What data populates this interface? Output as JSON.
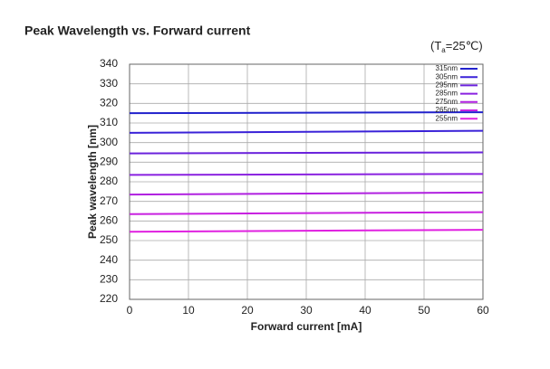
{
  "chart_data": {
    "type": "line",
    "title": "Peak Wavelength vs. Forward current",
    "annotation": {
      "prefix": "(T",
      "sub": "a",
      "suffix": "=25℃)"
    },
    "x_label": "Forward current [mA]",
    "y_label": "Peak wavelength [nm]",
    "x": [
      0,
      60
    ],
    "series": [
      {
        "name": "315nm",
        "color": "#2222cc",
        "values": [
          315,
          315.5
        ]
      },
      {
        "name": "305nm",
        "color": "#3a22d8",
        "values": [
          305,
          306
        ]
      },
      {
        "name": "295nm",
        "color": "#6a22dc",
        "values": [
          294.5,
          295
        ]
      },
      {
        "name": "285nm",
        "color": "#8a22e0",
        "values": [
          283.5,
          284
        ]
      },
      {
        "name": "275nm",
        "color": "#b020e0",
        "values": [
          273.5,
          274.5
        ]
      },
      {
        "name": "265nm",
        "color": "#c820e0",
        "values": [
          263.5,
          264.5
        ]
      },
      {
        "name": "255nm",
        "color": "#e020e0",
        "values": [
          254.5,
          255.5
        ]
      }
    ],
    "xlim": [
      0,
      60
    ],
    "xticks": [
      0,
      10,
      20,
      30,
      40,
      50,
      60
    ],
    "ylim": [
      220,
      340
    ],
    "yticks": [
      220,
      230,
      240,
      250,
      260,
      270,
      280,
      290,
      300,
      310,
      320,
      330,
      340
    ],
    "grid": true,
    "legend": "top-right"
  }
}
